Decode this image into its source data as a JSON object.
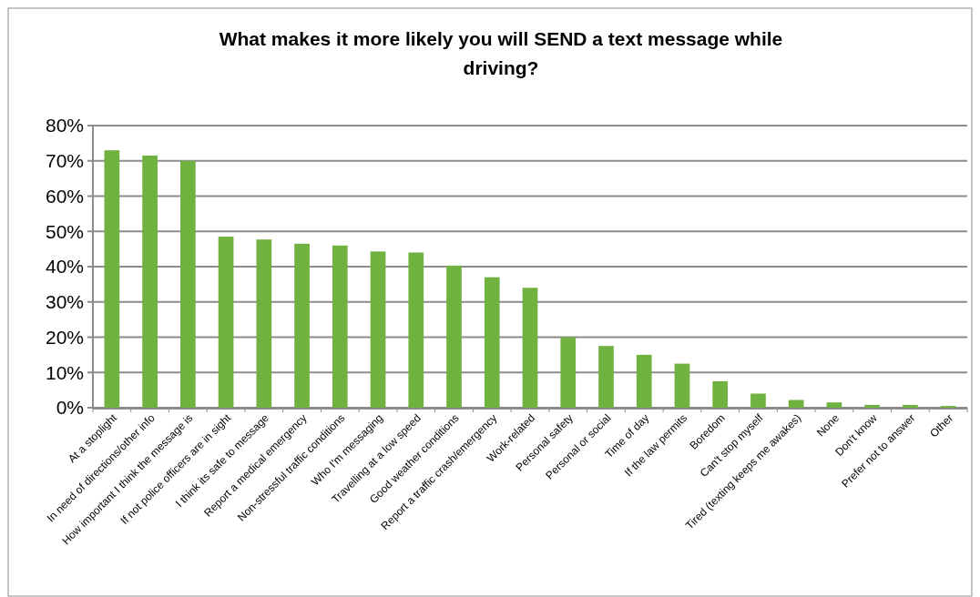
{
  "chart_data": {
    "type": "bar",
    "title": "What makes it more likely you will SEND a text message while driving?",
    "categories": [
      "At a stoplight",
      "In need of directions/other info",
      "How important I think the message is",
      "If not police officers are in sight",
      "I think its safe to message",
      "Report a medical emergency",
      "Non-stressful traffic conditions",
      "Who I'm messaging",
      "Travelling at a low speed",
      "Good weather conditions",
      "Report a traffic crash/emergency",
      "Work-related",
      "Personal safety",
      "Personal or social",
      "Time of day",
      "If the law permits",
      "Boredom",
      "Can't stop myself",
      "Tired (texting keeps me awakes)",
      "None",
      "Don't know",
      "Prefer not to answer",
      "Other"
    ],
    "values": [
      73,
      71.5,
      70,
      48.5,
      47.7,
      46.5,
      46,
      44.3,
      44,
      40.3,
      37,
      34,
      20,
      17.5,
      15,
      12.5,
      7.5,
      4,
      2.2,
      1.5,
      0.8,
      0.8,
      0.5
    ],
    "color": "#70b23f",
    "ylim": [
      0,
      80
    ],
    "yticks": [
      {
        "value": 0,
        "label": "0%"
      },
      {
        "value": 10,
        "label": "10%"
      },
      {
        "value": 20,
        "label": "20%"
      },
      {
        "value": 30,
        "label": "30%"
      },
      {
        "value": 40,
        "label": "40%"
      },
      {
        "value": 50,
        "label": "50%"
      },
      {
        "value": 60,
        "label": "60%"
      },
      {
        "value": 70,
        "label": "70%"
      },
      {
        "value": 80,
        "label": "80%"
      }
    ],
    "grid": "y"
  }
}
